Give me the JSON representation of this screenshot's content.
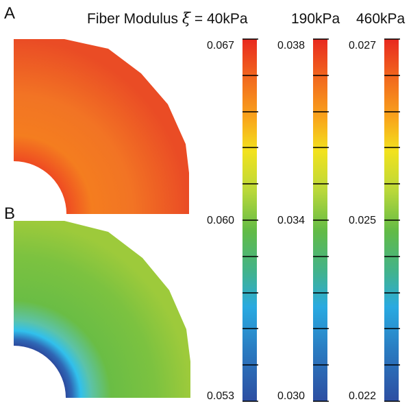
{
  "panels": {
    "a": "A",
    "b": "B"
  },
  "header": {
    "prefix": "Fiber Modulus",
    "symbol": "ξ",
    "eq": "= 40kPa",
    "col2": "190kPa",
    "col3": "460kPa"
  },
  "colorbars": [
    {
      "top": "0.067",
      "mid": "0.060",
      "bottom": "0.053"
    },
    {
      "top": "0.038",
      "mid": "0.034",
      "bottom": "0.030"
    },
    {
      "top": "0.027",
      "mid": "0.025",
      "bottom": "0.022"
    }
  ],
  "colormap": [
    "#e8291f",
    "#f26a1e",
    "#f9a61b",
    "#f2e21e",
    "#b9d83a",
    "#62bb46",
    "#43b38a",
    "#29aae1",
    "#2a7bc1",
    "#2d4ea2"
  ]
}
